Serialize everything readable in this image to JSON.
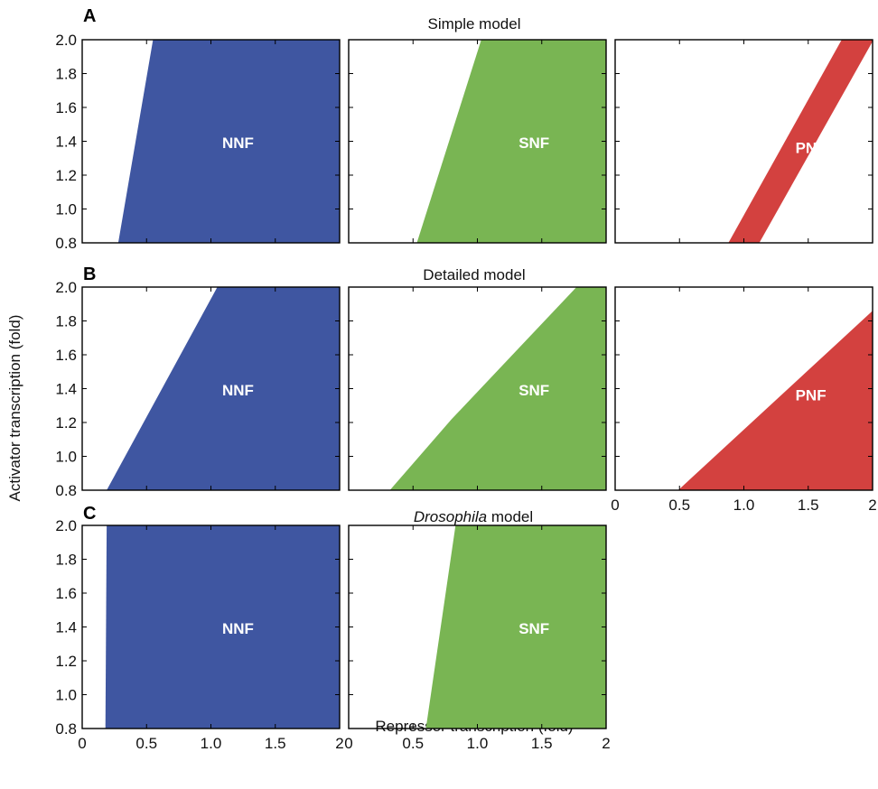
{
  "y_axis_label": "Activator transcription (fold)",
  "x_axis_label": "Repressor transcription (fold)",
  "colors": {
    "NNF": "#3f56a1",
    "SNF": "#79b553",
    "PNF": "#d3413f"
  },
  "rows": [
    {
      "letter": "A",
      "title": "Simple model",
      "title_italic": "",
      "title_rest": ""
    },
    {
      "letter": "B",
      "title": "Detailed model",
      "title_italic": "",
      "title_rest": ""
    },
    {
      "letter": "C",
      "title": "",
      "title_italic": "Drosophila",
      "title_rest": " model"
    }
  ],
  "chart_data": [
    {
      "type": "area",
      "row": "A",
      "col": 0,
      "label": "NNF",
      "xlim": [
        0,
        2
      ],
      "ylim": [
        0.8,
        2.0
      ],
      "region": [
        [
          0.28,
          0.8
        ],
        [
          0.55,
          2.0
        ],
        [
          2.0,
          2.0
        ],
        [
          2.0,
          0.8
        ]
      ]
    },
    {
      "type": "area",
      "row": "A",
      "col": 1,
      "label": "SNF",
      "xlim": [
        0,
        2
      ],
      "ylim": [
        0.8,
        2.0
      ],
      "region": [
        [
          0.53,
          0.8
        ],
        [
          1.03,
          2.0
        ],
        [
          2.0,
          2.0
        ],
        [
          2.0,
          0.8
        ]
      ]
    },
    {
      "type": "area",
      "row": "A",
      "col": 2,
      "label": "PNF",
      "xlim": [
        0,
        2
      ],
      "ylim": [
        0.8,
        2.0
      ],
      "region": [
        [
          0.88,
          0.8
        ],
        [
          1.12,
          0.8
        ],
        [
          2.0,
          1.99
        ],
        [
          2.0,
          2.0
        ],
        [
          1.76,
          2.0
        ]
      ]
    },
    {
      "type": "area",
      "row": "B",
      "col": 0,
      "label": "NNF",
      "xlim": [
        0,
        2
      ],
      "ylim": [
        0.8,
        2.0
      ],
      "region": [
        [
          0.19,
          0.8
        ],
        [
          1.05,
          2.0
        ],
        [
          2.0,
          2.0
        ],
        [
          2.0,
          0.8
        ]
      ]
    },
    {
      "type": "area",
      "row": "B",
      "col": 1,
      "label": "SNF",
      "xlim": [
        0,
        2
      ],
      "ylim": [
        0.8,
        2.0
      ],
      "region": [
        [
          0.32,
          0.8
        ],
        [
          0.8,
          1.22
        ],
        [
          1.77,
          2.0
        ],
        [
          2.0,
          2.0
        ],
        [
          2.0,
          0.8
        ]
      ]
    },
    {
      "type": "area",
      "row": "B",
      "col": 2,
      "label": "PNF",
      "xlim": [
        0,
        2
      ],
      "ylim": [
        0.8,
        2.0
      ],
      "xticks": [
        "0",
        "0.5",
        "1.0",
        "1.5",
        "2"
      ],
      "region": [
        [
          0.49,
          0.8
        ],
        [
          2.0,
          1.86
        ],
        [
          2.0,
          0.8
        ]
      ]
    },
    {
      "type": "area",
      "row": "C",
      "col": 0,
      "label": "NNF",
      "xlim": [
        0,
        2
      ],
      "ylim": [
        0.8,
        2.0
      ],
      "xticks": [
        "0",
        "0.5",
        "1.0",
        "1.5",
        "2"
      ],
      "region": [
        [
          0.18,
          0.8
        ],
        [
          0.19,
          2.0
        ],
        [
          2.0,
          2.0
        ],
        [
          2.0,
          0.8
        ]
      ]
    },
    {
      "type": "area",
      "row": "C",
      "col": 1,
      "label": "SNF",
      "xlim": [
        0,
        2
      ],
      "ylim": [
        0.8,
        2.0
      ],
      "xticks": [
        "0",
        "0.5",
        "1.0",
        "1.5",
        "2"
      ],
      "region": [
        [
          0.6,
          0.8
        ],
        [
          0.83,
          2.0
        ],
        [
          2.0,
          2.0
        ],
        [
          2.0,
          0.8
        ]
      ]
    }
  ],
  "y_ticks": [
    "0.8",
    "1.0",
    "1.2",
    "1.4",
    "1.6",
    "1.8",
    "2.0"
  ]
}
